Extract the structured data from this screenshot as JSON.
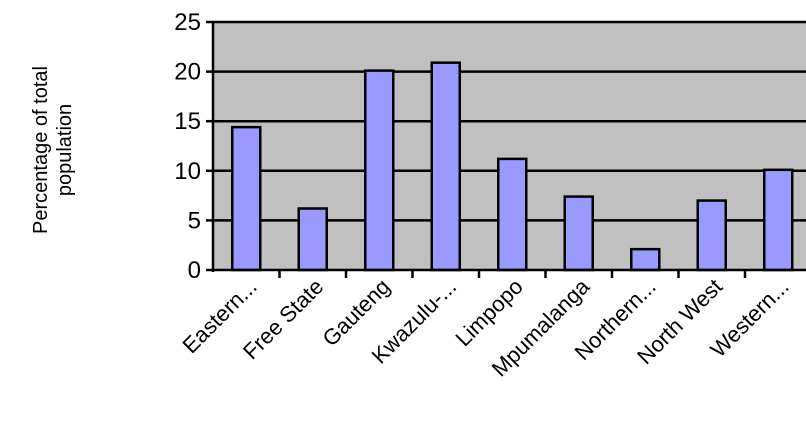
{
  "chart_data": {
    "type": "bar",
    "ylabel_lines": [
      "Percentage of total",
      "population"
    ],
    "xlabel": "",
    "categories": [
      "Eastern...",
      "Free State",
      "Gauteng",
      "Kwazulu-...",
      "Limpopo",
      "Mpumalanga",
      "Northern...",
      "North West",
      "Western..."
    ],
    "values": [
      14.4,
      6.2,
      20.1,
      20.9,
      11.2,
      7.4,
      2.1,
      7.0,
      10.1
    ],
    "ylim": [
      0,
      25
    ],
    "yticks": [
      0,
      5,
      10,
      15,
      20,
      25
    ],
    "grid": true,
    "legend": "none",
    "colors": {
      "plot_background": "#c0c0c0",
      "bar_fill": "#9999ff",
      "bar_stroke": "#000000",
      "gridline": "#000000"
    }
  }
}
